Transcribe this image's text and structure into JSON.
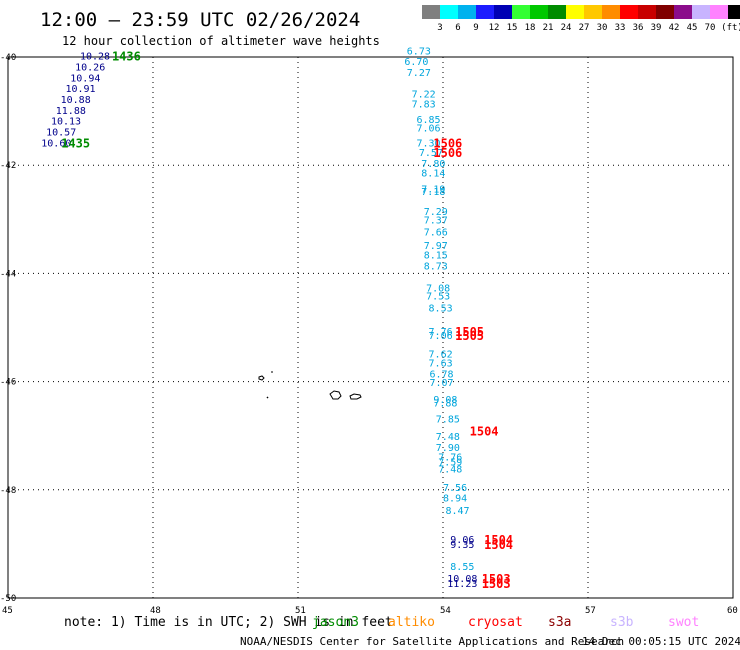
{
  "header": {
    "title": "12:00 — 23:59 UTC 02/26/2024",
    "subtitle": "12 hour collection of altimeter wave heights"
  },
  "colorbar": {
    "labels": [
      "3",
      "6",
      "9",
      "12",
      "15",
      "18",
      "21",
      "24",
      "27",
      "30",
      "33",
      "36",
      "39",
      "42",
      "45",
      "70",
      "(ft)"
    ],
    "colors": [
      "#7f7f7f",
      "#00ffff",
      "#00b2ee",
      "#1c1cff",
      "#0000b4",
      "#33ff33",
      "#00c800",
      "#008c00",
      "#ffff00",
      "#ffc800",
      "#ff8c00",
      "#ff0000",
      "#c80000",
      "#800000",
      "#8b0c8b",
      "#c8b4ff",
      "#ff82ff",
      "#000000"
    ]
  },
  "axes": {
    "x_ticks": [
      "45",
      "48",
      "51",
      "54",
      "57",
      "60"
    ],
    "y_ticks": [
      "-40",
      "-42",
      "-44",
      "-46",
      "-48",
      "-50"
    ]
  },
  "tracks": [
    {
      "color": "#00008b",
      "values": [
        {
          "lon": 46.8,
          "lat": -40.05,
          "v": "10.28"
        },
        {
          "lon": 46.7,
          "lat": -40.25,
          "v": "10.26"
        },
        {
          "lon": 46.6,
          "lat": -40.45,
          "v": "10.94"
        },
        {
          "lon": 46.5,
          "lat": -40.65,
          "v": "10.91"
        },
        {
          "lon": 46.4,
          "lat": -40.85,
          "v": "10.88"
        },
        {
          "lon": 46.3,
          "lat": -41.05,
          "v": "11.88"
        },
        {
          "lon": 46.2,
          "lat": -41.25,
          "v": "10.13"
        },
        {
          "lon": 46.1,
          "lat": -41.45,
          "v": "10.57"
        },
        {
          "lon": 46.0,
          "lat": -41.65,
          "v": "10.60"
        }
      ],
      "times": [
        {
          "lon": 47.45,
          "lat": -40.05,
          "t": "1436",
          "color": "#008c00"
        },
        {
          "lon": 46.4,
          "lat": -41.65,
          "t": "1435",
          "color": "#008c00"
        }
      ]
    },
    {
      "color": "#00a5dc",
      "values": [
        {
          "lon": 53.5,
          "lat": -39.95,
          "v": "6.73"
        },
        {
          "lon": 53.45,
          "lat": -40.15,
          "v": "6.70"
        },
        {
          "lon": 53.5,
          "lat": -40.35,
          "v": "7.27"
        },
        {
          "lon": 53.6,
          "lat": -40.75,
          "v": "7.22"
        },
        {
          "lon": 53.6,
          "lat": -40.93,
          "v": "7.83"
        },
        {
          "lon": 53.7,
          "lat": -41.22,
          "v": "6.85"
        },
        {
          "lon": 53.7,
          "lat": -41.38,
          "v": "7.06"
        },
        {
          "lon": 53.7,
          "lat": -41.65,
          "v": "7.30"
        },
        {
          "lon": 53.75,
          "lat": -41.83,
          "v": "7.57"
        },
        {
          "lon": 53.8,
          "lat": -42.03,
          "v": "7.80"
        },
        {
          "lon": 53.8,
          "lat": -42.21,
          "v": "8.14"
        },
        {
          "lon": 53.8,
          "lat": -42.5,
          "v": "7.19"
        },
        {
          "lon": 53.8,
          "lat": -42.55,
          "v": "7.18"
        },
        {
          "lon": 53.85,
          "lat": -42.92,
          "v": "7.29"
        },
        {
          "lon": 53.85,
          "lat": -43.08,
          "v": "7.37"
        },
        {
          "lon": 53.85,
          "lat": -43.3,
          "v": "7.66"
        },
        {
          "lon": 53.85,
          "lat": -43.55,
          "v": "7.97"
        },
        {
          "lon": 53.85,
          "lat": -43.72,
          "v": "8.15"
        },
        {
          "lon": 53.85,
          "lat": -43.93,
          "v": "8.73"
        },
        {
          "lon": 53.9,
          "lat": -44.33,
          "v": "7.08"
        },
        {
          "lon": 53.9,
          "lat": -44.48,
          "v": "7.53"
        },
        {
          "lon": 53.95,
          "lat": -44.7,
          "v": "8.53"
        },
        {
          "lon": 53.95,
          "lat": -45.14,
          "v": "7.76"
        },
        {
          "lon": 53.95,
          "lat": -45.21,
          "v": "7.06"
        },
        {
          "lon": 53.95,
          "lat": -45.55,
          "v": "7.62"
        },
        {
          "lon": 53.95,
          "lat": -45.72,
          "v": "7.63"
        },
        {
          "lon": 53.97,
          "lat": -45.92,
          "v": "6.78"
        },
        {
          "lon": 53.97,
          "lat": -46.08,
          "v": "7.07"
        },
        {
          "lon": 54.05,
          "lat": -46.4,
          "v": "9.08"
        },
        {
          "lon": 54.05,
          "lat": -46.46,
          "v": "7.88"
        },
        {
          "lon": 54.1,
          "lat": -46.76,
          "v": "7.85"
        },
        {
          "lon": 54.1,
          "lat": -47.08,
          "v": "7.48"
        },
        {
          "lon": 54.1,
          "lat": -47.28,
          "v": "7.90"
        },
        {
          "lon": 54.15,
          "lat": -47.46,
          "v": "7.76"
        },
        {
          "lon": 54.15,
          "lat": -47.55,
          "v": "7.59"
        },
        {
          "lon": 54.15,
          "lat": -47.68,
          "v": "7.48"
        },
        {
          "lon": 54.25,
          "lat": -48.02,
          "v": "7.56"
        },
        {
          "lon": 54.25,
          "lat": -48.22,
          "v": "8.94"
        },
        {
          "lon": 54.3,
          "lat": -48.45,
          "v": "8.47"
        },
        {
          "lon": 54.4,
          "lat": -49.48,
          "v": "8.55"
        }
      ],
      "times": []
    },
    {
      "color": "#00008b",
      "values": [
        {
          "lon": 54.4,
          "lat": -48.98,
          "v": "9.06"
        },
        {
          "lon": 54.4,
          "lat": -49.08,
          "v": "9.35"
        },
        {
          "lon": 54.4,
          "lat": -49.7,
          "v": "10.08"
        },
        {
          "lon": 54.4,
          "lat": -49.8,
          "v": "11.23"
        }
      ],
      "times": []
    },
    {
      "color": "#ff0000",
      "values": [],
      "times": [
        {
          "lon": 54.1,
          "lat": -41.65,
          "t": "1506",
          "color": "#ff0000"
        },
        {
          "lon": 54.1,
          "lat": -41.83,
          "t": "1506",
          "color": "#ff0000"
        },
        {
          "lon": 54.55,
          "lat": -45.14,
          "t": "1505",
          "color": "#ff0000"
        },
        {
          "lon": 54.55,
          "lat": -45.21,
          "t": "1505",
          "color": "#ff0000"
        },
        {
          "lon": 54.85,
          "lat": -46.98,
          "t": "1504",
          "color": "#ff0000"
        },
        {
          "lon": 55.15,
          "lat": -48.98,
          "t": "1504",
          "color": "#ff0000"
        },
        {
          "lon": 55.15,
          "lat": -49.08,
          "t": "1504",
          "color": "#ff0000"
        },
        {
          "lon": 55.1,
          "lat": -49.7,
          "t": "1503",
          "color": "#ff0000"
        },
        {
          "lon": 55.1,
          "lat": -49.8,
          "t": "1503",
          "color": "#ff0000"
        }
      ]
    }
  ],
  "footer": {
    "note": "note:  1) Time is in UTC; 2) SWH is in feet",
    "legend": [
      {
        "label": "jason3",
        "color": "#008c00"
      },
      {
        "label": "altiko",
        "color": "#ff8c00"
      },
      {
        "label": "cryosat",
        "color": "#ff0000"
      },
      {
        "label": "s3a",
        "color": "#8b0000"
      },
      {
        "label": "s3b",
        "color": "#c8b4ff"
      },
      {
        "label": "swot",
        "color": "#ff82ff"
      }
    ],
    "credit": "NOAA/NESDIS Center for Satellite Applications and Research",
    "generated": "14 Dec 00:05:15 UTC 2024"
  }
}
